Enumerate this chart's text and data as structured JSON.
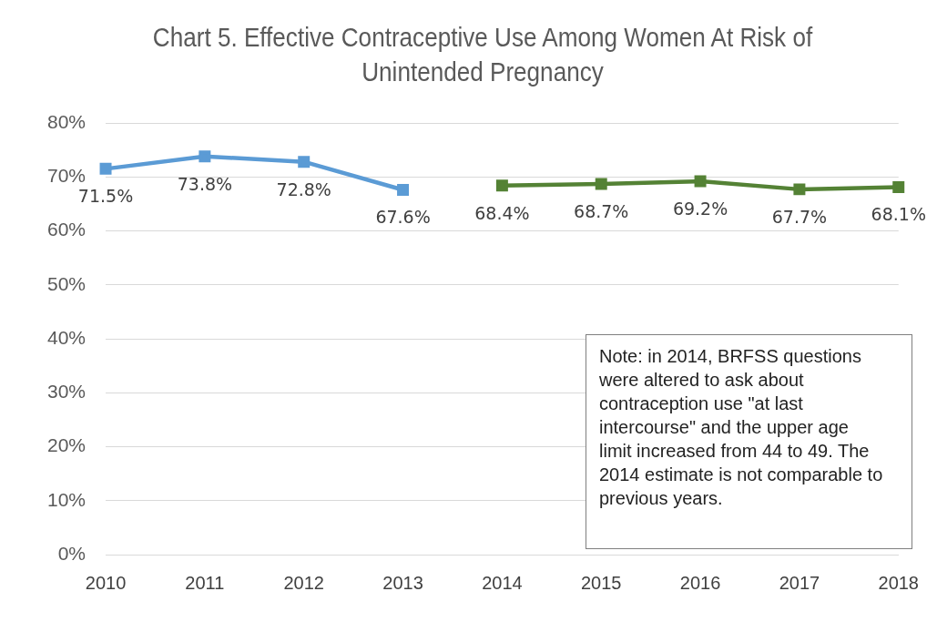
{
  "chart_data": {
    "type": "line",
    "title": "Chart 5. Effective Contraceptive Use Among Women At Risk of Unintended Pregnancy",
    "categories": [
      "2010",
      "2011",
      "2012",
      "2013",
      "2014",
      "2015",
      "2016",
      "2017",
      "2018"
    ],
    "series": [
      {
        "color": "#5b9bd5",
        "values": [
          71.5,
          73.8,
          72.8,
          67.6,
          null,
          null,
          null,
          null,
          null
        ],
        "value_labels": [
          "71.5%",
          "73.8%",
          "72.8%",
          "67.6%",
          null,
          null,
          null,
          null,
          null
        ]
      },
      {
        "color": "#548235",
        "values": [
          null,
          null,
          null,
          null,
          68.4,
          68.7,
          69.2,
          67.7,
          68.1
        ],
        "value_labels": [
          null,
          null,
          null,
          null,
          "68.4%",
          "68.7%",
          "69.2%",
          "67.7%",
          "68.1%"
        ]
      }
    ],
    "ylim": [
      0,
      80
    ],
    "yticks": [
      {
        "value": 0,
        "label": "0%"
      },
      {
        "value": 10,
        "label": "10%"
      },
      {
        "value": 20,
        "label": "20%"
      },
      {
        "value": 30,
        "label": "30%"
      },
      {
        "value": 40,
        "label": "40%"
      },
      {
        "value": 50,
        "label": "50%"
      },
      {
        "value": 60,
        "label": "60%"
      },
      {
        "value": 70,
        "label": "70%"
      },
      {
        "value": 80,
        "label": "80%"
      }
    ],
    "grid": "y",
    "legend": false,
    "marker": "square",
    "line_style": "solid",
    "annotations": [
      "Note: in 2014, BRFSS questions were altered to ask about contraception use \"at last intercourse\" and the upper age limit increased from 44 to 49. The 2014 estimate is not comparable to previous years."
    ]
  }
}
